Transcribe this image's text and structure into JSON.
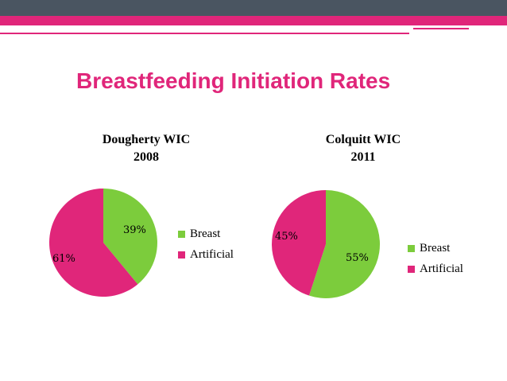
{
  "slide": {
    "title": "Breastfeeding Initiation Rates",
    "colors": {
      "accent": "#e0267a",
      "bar_dark": "#4a5561"
    }
  },
  "chart_data": [
    {
      "type": "pie",
      "title_line1": "Dougherty WIC",
      "title_line2": "2008",
      "categories": [
        "Breast",
        "Artificial"
      ],
      "values": [
        39,
        61
      ],
      "labels": [
        "39%",
        "61%"
      ],
      "colors": [
        "#7ccc3c",
        "#e0267a"
      ],
      "legend_position": "right"
    },
    {
      "type": "pie",
      "title_line1": "Colquitt WIC",
      "title_line2": "2011",
      "categories": [
        "Breast",
        "Artificial"
      ],
      "values": [
        55,
        45
      ],
      "labels": [
        "55%",
        "45%"
      ],
      "colors": [
        "#7ccc3c",
        "#e0267a"
      ],
      "legend_position": "right"
    }
  ]
}
